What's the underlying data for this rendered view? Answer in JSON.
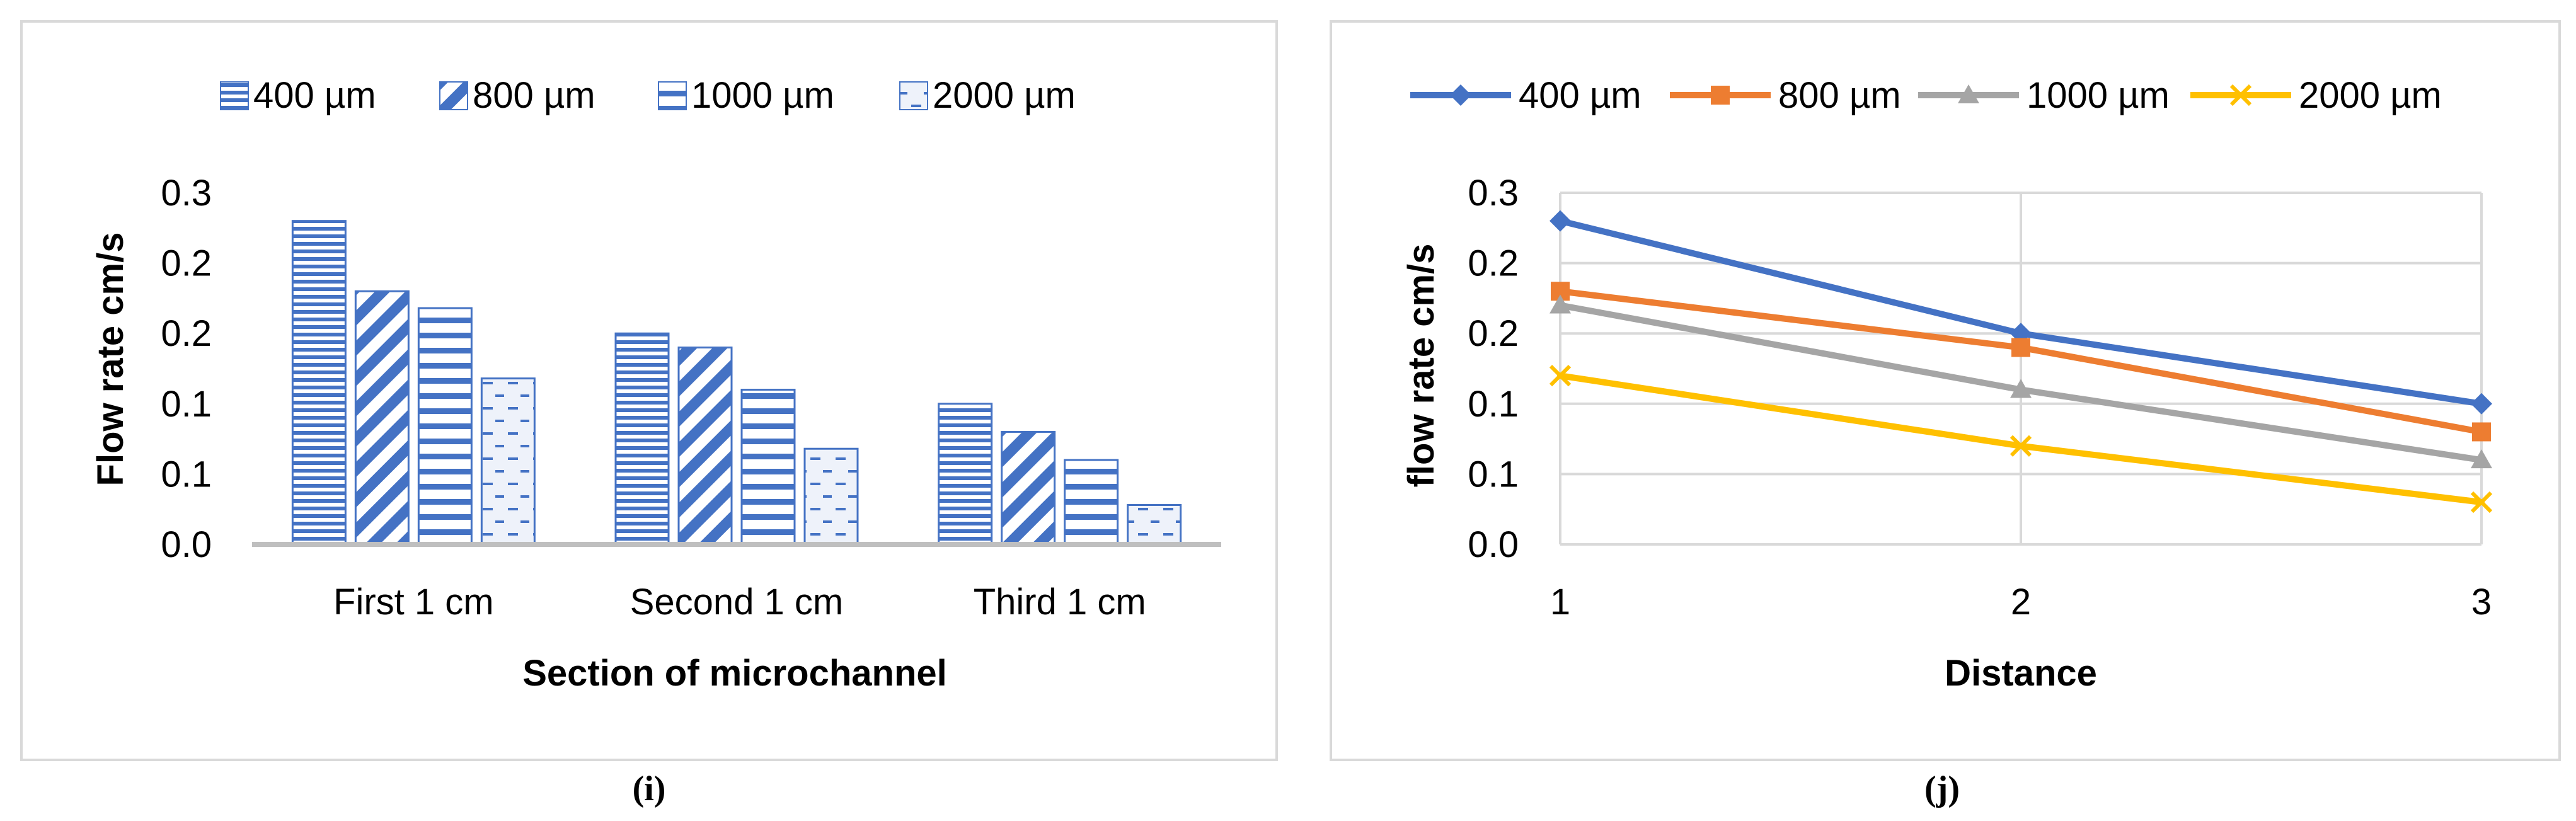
{
  "colors": {
    "bar_400": "#4472c4",
    "bar_800": "#4472c4",
    "bar_1000": "#4472c4",
    "bar_2000": "#4472c4",
    "line_400": "#4472c4",
    "line_800": "#ed7d31",
    "line_1000": "#a5a5a5",
    "line_2000": "#ffc000",
    "gridline": "#d9d9d9",
    "panel_border": "#d9d9d9",
    "axis_text": "#000000"
  },
  "chart_data": [
    {
      "id": "i",
      "type": "bar",
      "caption": "(i)",
      "title": "",
      "xlabel": "Section of microchannel",
      "ylabel": "Flow rate cm/s",
      "categories": [
        "First 1 cm",
        "Second 1 cm",
        "Third 1 cm"
      ],
      "ylim": [
        0,
        0.25
      ],
      "y_ticks": [
        0,
        0.05,
        0.1,
        0.15,
        0.2,
        0.25
      ],
      "y_tick_labels": [
        "0.0",
        "0.1",
        "0.1",
        "0.2",
        "0.2",
        "0.3"
      ],
      "grid": false,
      "legend_position": "top",
      "series": [
        {
          "name": "400 µm",
          "pattern": "horizontal-lines",
          "values": [
            0.23,
            0.15,
            0.1
          ]
        },
        {
          "name": "800 µm",
          "pattern": "diagonal-lines",
          "values": [
            0.18,
            0.14,
            0.08
          ]
        },
        {
          "name": "1000 µm",
          "pattern": "wide-horizontal-lines",
          "values": [
            0.168,
            0.11,
            0.06
          ]
        },
        {
          "name": "2000 µm",
          "pattern": "dashed-lines",
          "values": [
            0.118,
            0.068,
            0.028
          ]
        }
      ]
    },
    {
      "id": "j",
      "type": "line",
      "caption": "(j)",
      "title": "",
      "xlabel": "Distance",
      "ylabel": "flow rate cm/s",
      "x": [
        1,
        2,
        3
      ],
      "x_tick_labels": [
        "1",
        "2",
        "3"
      ],
      "xlim": [
        1,
        3
      ],
      "ylim": [
        0,
        0.25
      ],
      "y_ticks": [
        0,
        0.05,
        0.1,
        0.15,
        0.2,
        0.25
      ],
      "y_tick_labels": [
        "0.0",
        "0.1",
        "0.1",
        "0.2",
        "0.2",
        "0.3"
      ],
      "grid": true,
      "legend_position": "top",
      "series": [
        {
          "name": "400 µm",
          "marker": "diamond",
          "values": [
            0.23,
            0.15,
            0.1
          ]
        },
        {
          "name": "800 µm",
          "marker": "square",
          "values": [
            0.18,
            0.14,
            0.08
          ]
        },
        {
          "name": "1000 µm",
          "marker": "triangle",
          "values": [
            0.17,
            0.11,
            0.06
          ]
        },
        {
          "name": "2000 µm",
          "marker": "x",
          "values": [
            0.12,
            0.07,
            0.03
          ]
        }
      ]
    }
  ]
}
